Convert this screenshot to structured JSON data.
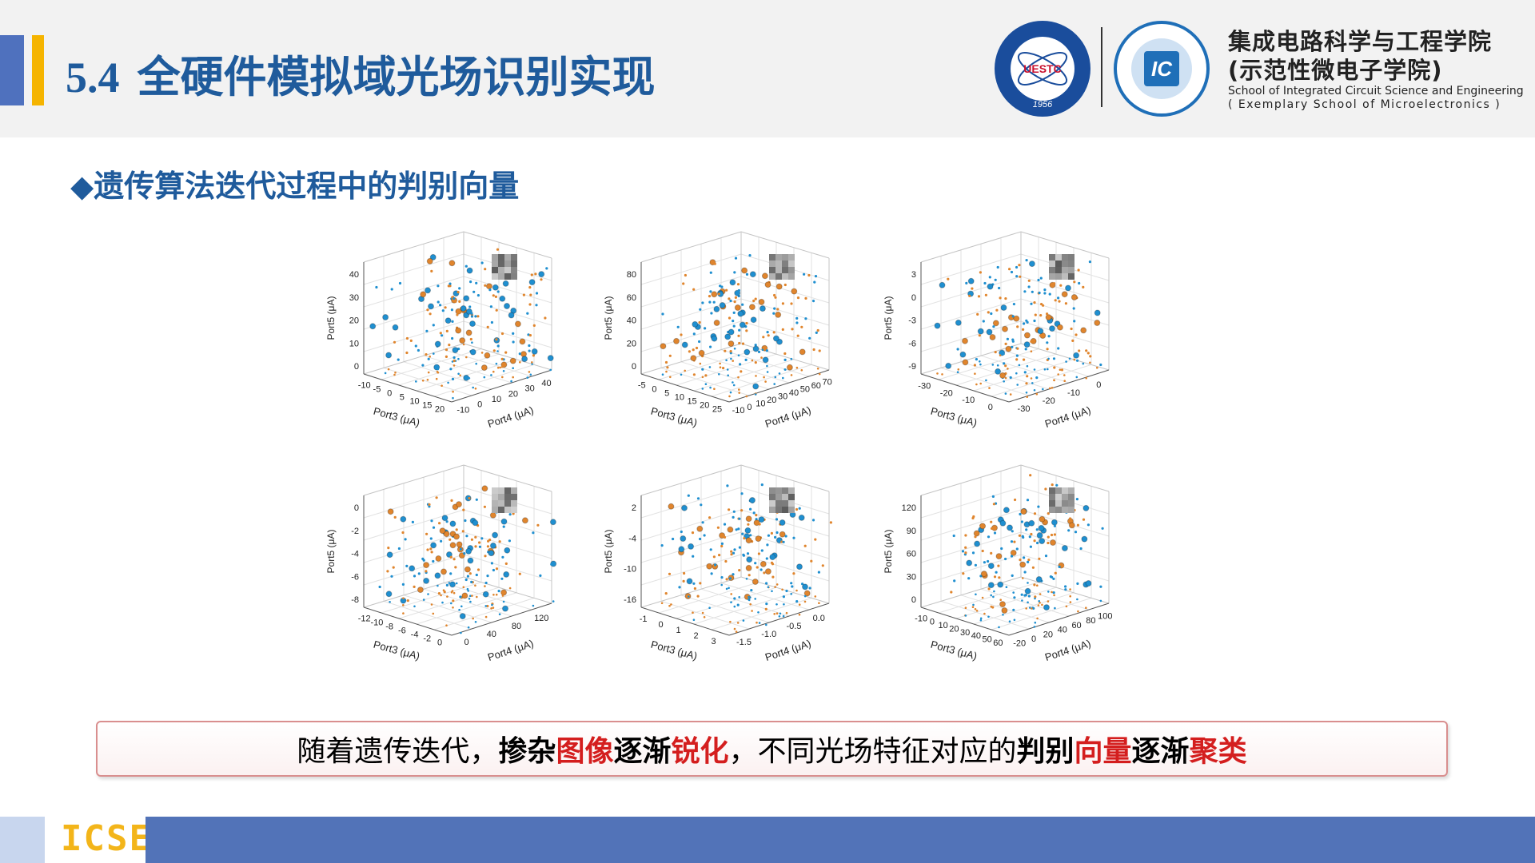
{
  "header": {
    "section": "5.4",
    "title": "全硬件模拟域光场识别实现",
    "logo1_text": "UESTC",
    "logo1_year": "1956",
    "logo2_text": "IC",
    "school_cn_1": "集成电路科学与工程学院",
    "school_cn_2": "(示范性微电子学院)",
    "school_en_1": "School of Integrated Circuit Science and Engineering",
    "school_en_2": "( Exemplary School of Microelectronics )"
  },
  "subtitle": "◆遗传算法迭代过程中的判别向量",
  "panels": [
    {
      "z_label": "Port5 (μA)",
      "x_label": "Port3 (μA)",
      "y_label": "Port4 (μA)",
      "z_ticks": [
        "0",
        "10",
        "20",
        "30",
        "40"
      ],
      "x_ticks": [
        "-10",
        "-5",
        "0",
        "5",
        "10",
        "15",
        "20"
      ],
      "y_ticks": [
        "-10",
        "0",
        "10",
        "20",
        "30",
        "40"
      ]
    },
    {
      "z_label": "Port5 (μA)",
      "x_label": "Port3 (μA)",
      "y_label": "Port4 (μA)",
      "z_ticks": [
        "0",
        "20",
        "40",
        "60",
        "80"
      ],
      "x_ticks": [
        "-5",
        "0",
        "5",
        "10",
        "15",
        "20",
        "25"
      ],
      "y_ticks": [
        "-10",
        "0",
        "10",
        "20",
        "30",
        "40",
        "50",
        "60",
        "70"
      ]
    },
    {
      "z_label": "Port5 (μA)",
      "x_label": "Port3 (μA)",
      "y_label": "Port4 (μA)",
      "z_ticks": [
        "-9",
        "-6",
        "-3",
        "0",
        "3"
      ],
      "x_ticks": [
        "-30",
        "-20",
        "-10",
        "0"
      ],
      "y_ticks": [
        "-30",
        "-20",
        "-10",
        "0"
      ]
    },
    {
      "z_label": "Port5 (μA)",
      "x_label": "Port3 (μA)",
      "y_label": "Port4 (μA)",
      "z_ticks": [
        "-8",
        "-6",
        "-4",
        "-2",
        "0"
      ],
      "x_ticks": [
        "-12",
        "-10",
        "-8",
        "-6",
        "-4",
        "-2",
        "0"
      ],
      "y_ticks": [
        "0",
        "40",
        "80",
        "120"
      ]
    },
    {
      "z_label": "Port5 (μA)",
      "x_label": "Port3 (μA)",
      "y_label": "Port4 (μA)",
      "z_ticks": [
        "-16",
        "-10",
        "-4",
        "2"
      ],
      "x_ticks": [
        "-1",
        "0",
        "1",
        "2",
        "3"
      ],
      "y_ticks": [
        "-1.5",
        "-1.0",
        "-0.5",
        "0.0"
      ]
    },
    {
      "z_label": "Port5 (μA)",
      "x_label": "Port3 (μA)",
      "y_label": "Port4 (μA)",
      "z_ticks": [
        "0",
        "30",
        "60",
        "90",
        "120"
      ],
      "x_ticks": [
        "-10",
        "0",
        "10",
        "20",
        "30",
        "40",
        "50",
        "60"
      ],
      "y_ticks": [
        "-20",
        "0",
        "20",
        "40",
        "60",
        "80",
        "100"
      ]
    }
  ],
  "conclusion": [
    {
      "text": "随着遗传迭代，",
      "style": "normal"
    },
    {
      "text": "掺杂",
      "style": "bold"
    },
    {
      "text": "图像",
      "style": "red"
    },
    {
      "text": "逐渐",
      "style": "bold"
    },
    {
      "text": "锐化",
      "style": "red"
    },
    {
      "text": "，不同光场特征对应的",
      "style": "normal"
    },
    {
      "text": "判别",
      "style": "bold"
    },
    {
      "text": "向量",
      "style": "red"
    },
    {
      "text": "逐渐",
      "style": "bold"
    },
    {
      "text": "聚类",
      "style": "red"
    }
  ],
  "footer": {
    "brand": "ICSE"
  }
}
